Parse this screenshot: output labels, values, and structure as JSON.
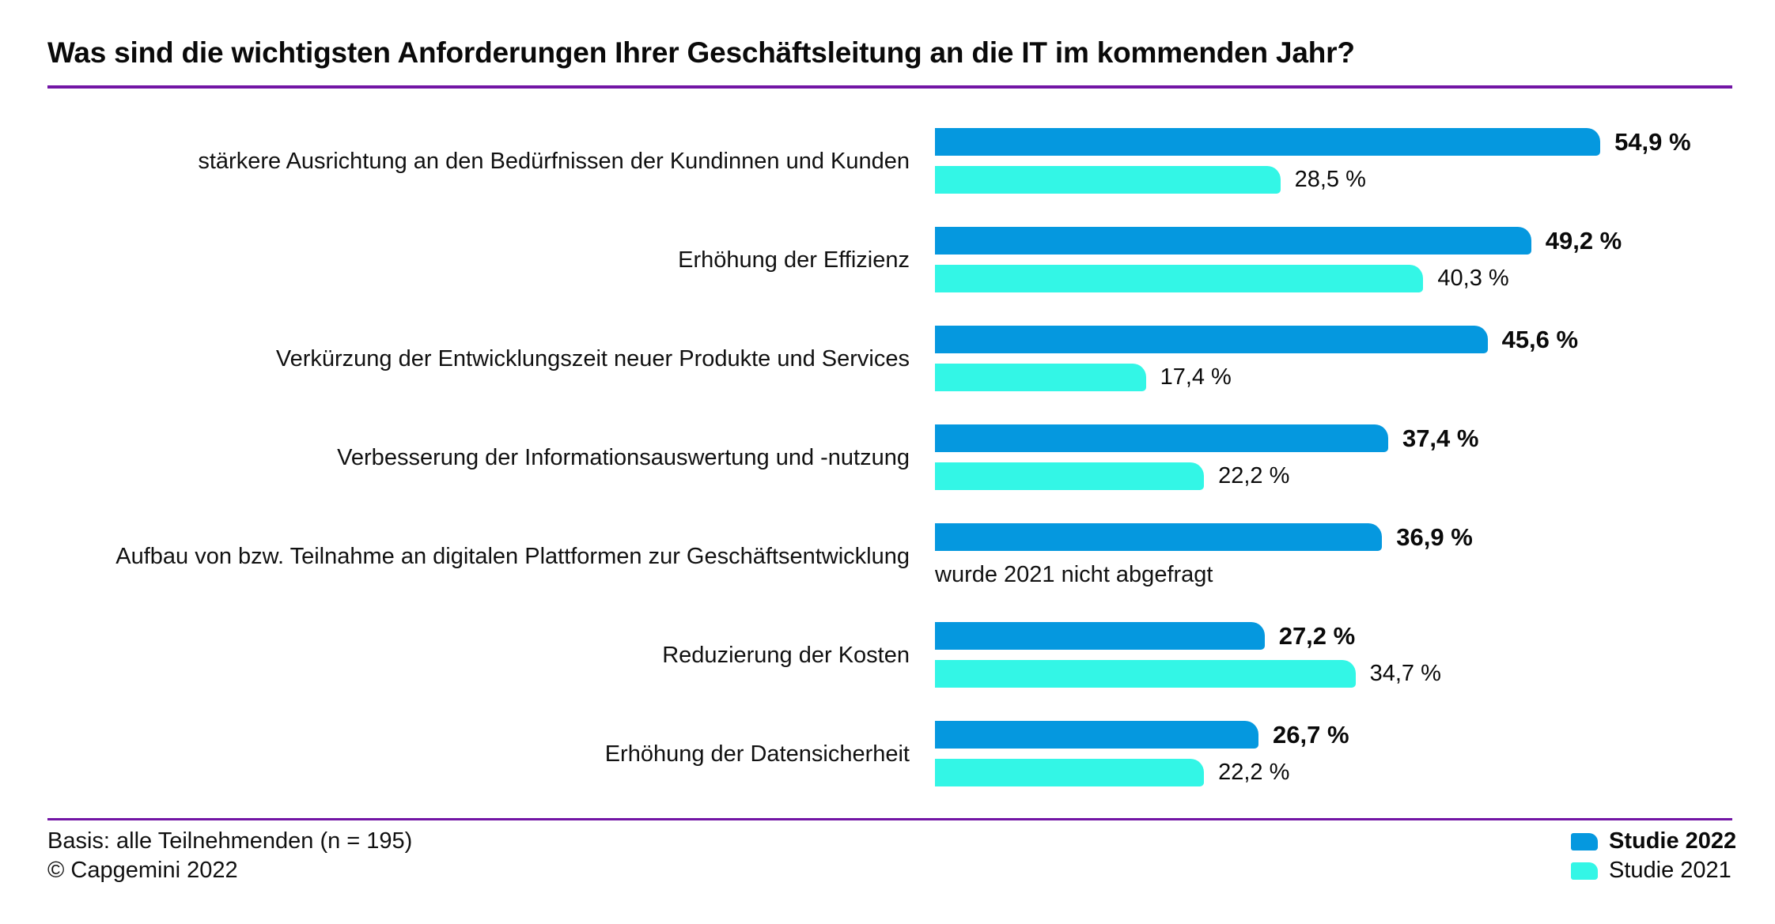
{
  "title": "Was sind die wichtigsten Anforderungen Ihrer Geschäftsleitung an die IT im kommenden Jahr?",
  "colors": {
    "bar_2022": "#0598DF",
    "bar_2021": "#33F6E6",
    "rule_purple": "#7215A5",
    "text": "#111111"
  },
  "chart_data": {
    "type": "bar",
    "orientation": "horizontal",
    "title": "Was sind die wichtigsten Anforderungen Ihrer Geschäftsleitung an die IT im kommenden Jahr?",
    "xlim": [
      0,
      65
    ],
    "grid": false,
    "legend_position": "bottom-right",
    "categories": [
      "stärkere Ausrichtung an den Bedürfnissen der Kundinnen und Kunden",
      "Erhöhung der Effizienz",
      "Verkürzung der Entwicklungszeit neuer Produkte und Services",
      "Verbesserung der Informationsauswertung und -nutzung",
      "Aufbau von bzw. Teilnahme an digitalen Plattformen zur Geschäftsentwicklung",
      "Reduzierung der Kosten",
      "Erhöhung der Datensicherheit"
    ],
    "series": [
      {
        "name": "Studie 2022",
        "values": [
          54.9,
          49.2,
          45.6,
          37.4,
          36.9,
          27.2,
          26.7
        ]
      },
      {
        "name": "Studie 2021",
        "values": [
          28.5,
          40.3,
          17.4,
          22.2,
          null,
          34.7,
          22.2
        ]
      }
    ],
    "value_labels_2022": [
      "54,9 %",
      "49,2 %",
      "45,6 %",
      "37,4 %",
      "36,9 %",
      "27,2 %",
      "26,7 %"
    ],
    "value_labels_2021": [
      "28,5 %",
      "40,3 %",
      "17,4 %",
      "22,2 %",
      null,
      "34,7 %",
      "22,2 %"
    ],
    "missing_note": "wurde 2021 nicht abgefragt"
  },
  "legend": {
    "items": [
      {
        "label": "Studie 2022",
        "color": "#0598DF"
      },
      {
        "label": "Studie 2021",
        "color": "#33F6E6"
      }
    ]
  },
  "footer": {
    "basis": "Basis: alle Teilnehmenden (n = 195)",
    "copyright": "© Capgemini 2022"
  }
}
